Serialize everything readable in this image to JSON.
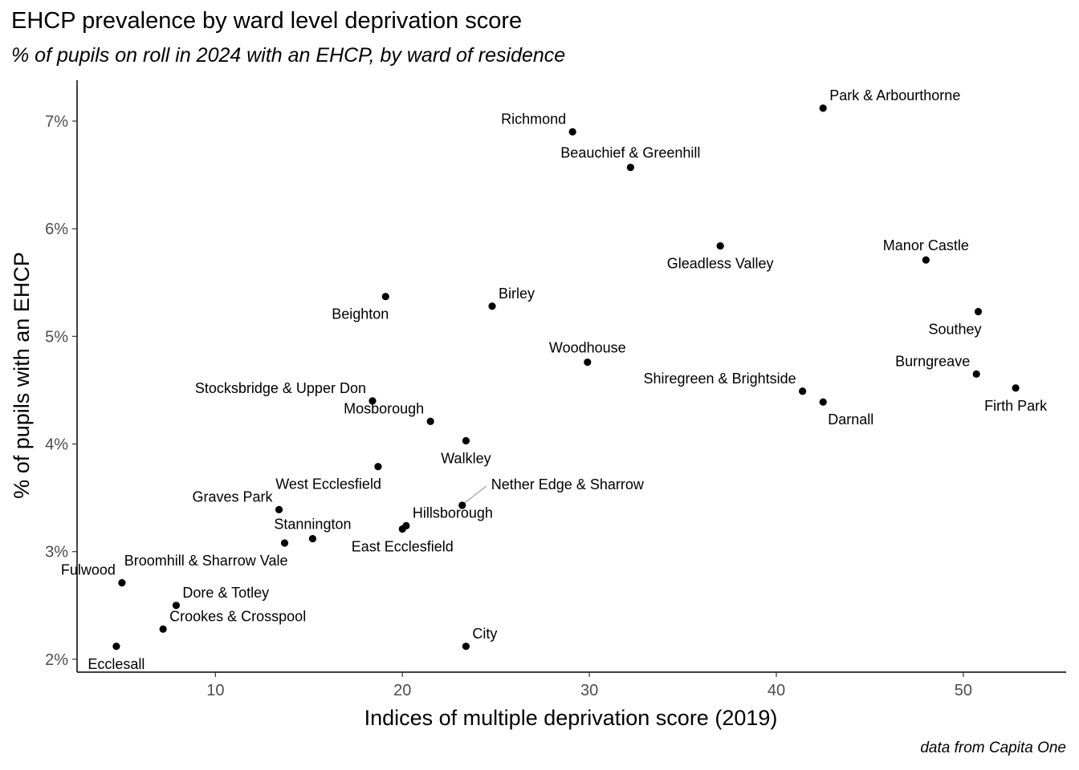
{
  "title": "EHCP prevalence by ward level deprivation score",
  "subtitle": "% of pupils on roll in 2024 with an EHCP, by ward of residence",
  "caption": "data from Capita One",
  "chart_data": {
    "type": "scatter",
    "xlabel": "Indices of multiple deprivation score (2019)",
    "ylabel": "% of pupils with an EHCP",
    "xlim": [
      2.6,
      55.5
    ],
    "ylim": [
      1.88,
      7.38
    ],
    "xticks": [
      10,
      20,
      30,
      40,
      50
    ],
    "yticks": [
      2,
      3,
      4,
      5,
      6,
      7
    ],
    "ytick_labels": [
      "2%",
      "3%",
      "4%",
      "5%",
      "6%",
      "7%"
    ],
    "grid": false,
    "points": [
      {
        "label": "Park & Arbourthorne",
        "x": 42.5,
        "y": 7.12,
        "lpos": "ur"
      },
      {
        "label": "Richmond",
        "x": 29.1,
        "y": 6.9,
        "lpos": "ul"
      },
      {
        "label": "Beauchief & Greenhill",
        "x": 32.2,
        "y": 6.57,
        "lpos": "u"
      },
      {
        "label": "Gleadless Valley",
        "x": 37.0,
        "y": 5.84,
        "lpos": "d"
      },
      {
        "label": "Manor Castle",
        "x": 48.0,
        "y": 5.71,
        "lpos": "u"
      },
      {
        "label": "Beighton",
        "x": 19.1,
        "y": 5.37,
        "lpos": "dl"
      },
      {
        "label": "Birley",
        "x": 24.8,
        "y": 5.28,
        "lpos": "ur"
      },
      {
        "label": "Southey",
        "x": 50.8,
        "y": 5.23,
        "lpos": "dl"
      },
      {
        "label": "Woodhouse",
        "x": 29.9,
        "y": 4.76,
        "lpos": "u"
      },
      {
        "label": "Burngreave",
        "x": 50.7,
        "y": 4.65,
        "lpos": "ul"
      },
      {
        "label": "Firth Park",
        "x": 52.8,
        "y": 4.52,
        "lpos": "d"
      },
      {
        "label": "Shiregreen & Brightside",
        "x": 41.4,
        "y": 4.49,
        "lpos": "ul"
      },
      {
        "label": "Stocksbridge & Upper Don",
        "x": 18.4,
        "y": 4.4,
        "lpos": "ul"
      },
      {
        "label": "Darnall",
        "x": 42.5,
        "y": 4.39,
        "lpos": "dr"
      },
      {
        "label": "Mosborough",
        "x": 21.5,
        "y": 4.21,
        "lpos": "ul"
      },
      {
        "label": "Walkley",
        "x": 23.4,
        "y": 4.03,
        "lpos": "d"
      },
      {
        "label": "West Ecclesfield",
        "x": 18.7,
        "y": 3.79,
        "lpos": "dl"
      },
      {
        "label": "Nether Edge & Sharrow",
        "x": 23.2,
        "y": 3.43,
        "lpos": "leader"
      },
      {
        "label": "Graves Park",
        "x": 13.4,
        "y": 3.39,
        "lpos": "ul"
      },
      {
        "label": "Hillsborough",
        "x": 20.2,
        "y": 3.24,
        "lpos": "ur"
      },
      {
        "label": "East Ecclesfield",
        "x": 20.0,
        "y": 3.21,
        "lpos": "d"
      },
      {
        "label": "Stannington",
        "x": 15.2,
        "y": 3.12,
        "lpos": "u"
      },
      {
        "label": "Broomhill & Sharrow Vale",
        "x": 13.7,
        "y": 3.08,
        "lpos": "dl"
      },
      {
        "label": "Fulwood",
        "x": 5.0,
        "y": 2.71,
        "lpos": "ul"
      },
      {
        "label": "Dore & Totley",
        "x": 7.9,
        "y": 2.5,
        "lpos": "ur"
      },
      {
        "label": "Crookes & Crosspool",
        "x": 7.2,
        "y": 2.28,
        "lpos": "ur"
      },
      {
        "label": "City",
        "x": 23.4,
        "y": 2.12,
        "lpos": "ur"
      },
      {
        "label": "Ecclesall",
        "x": 4.7,
        "y": 2.12,
        "lpos": "d"
      }
    ]
  }
}
